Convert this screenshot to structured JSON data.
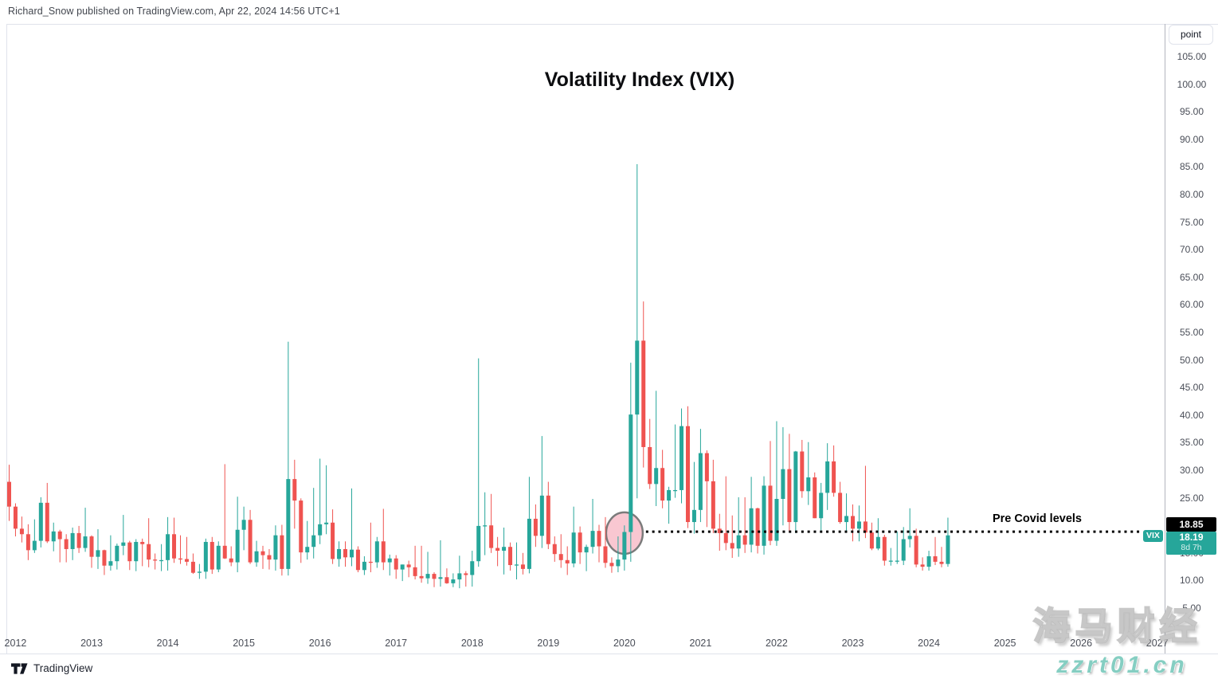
{
  "attribution": "Richard_Snow published on TradingView.com, Apr 22, 2024 14:56 UTC+1",
  "price_axis": {
    "unit_button": "point"
  },
  "price_labels": {
    "line": "18.85",
    "last": "18.19",
    "countdown": "8d 7h",
    "symbol_tag": "VIX"
  },
  "footer": {
    "logo_text": "TradingView"
  },
  "watermark": {
    "cjk": "海马财经",
    "latin": "zzrt01.cn"
  },
  "chart_data": {
    "type": "candlestick",
    "title": "Volatility Index (VIX)",
    "symbol": "VIX",
    "interval": "monthly",
    "grid": false,
    "colors": {
      "up": "#26a69a",
      "down": "#ef5350"
    },
    "y_axis": {
      "unit": "point",
      "min": 5,
      "max": 105,
      "tick_step": 5
    },
    "x_axis": {
      "tick_labels": [
        "2012",
        "2013",
        "2014",
        "2015",
        "2016",
        "2017",
        "2018",
        "2019",
        "2020",
        "2021",
        "2022",
        "2023",
        "2024",
        "2025",
        "2026",
        "2027"
      ]
    },
    "annotations": {
      "pre_covid_line": {
        "value": 18.85,
        "label": "Pre Covid levels",
        "style": "dotted",
        "color": "#000000",
        "price_label": "18.85"
      },
      "ellipse": {
        "month": "2020-01",
        "value": 18.6,
        "fill": "#f7b4c1",
        "border": "#7b7b7b"
      },
      "last_price": {
        "value": 18.19,
        "countdown": "8d 7h",
        "color": "#26a69a"
      }
    },
    "candle_fields": [
      "month",
      "open",
      "high",
      "low",
      "close"
    ],
    "candles": [
      [
        "2011-12",
        27.9,
        31.0,
        20.8,
        23.4
      ],
      [
        "2012-01",
        23.4,
        24.0,
        18.0,
        19.4
      ],
      [
        "2012-02",
        19.4,
        21.6,
        16.9,
        18.4
      ],
      [
        "2012-03",
        18.4,
        20.2,
        13.7,
        15.5
      ],
      [
        "2012-04",
        15.5,
        21.1,
        15.0,
        17.2
      ],
      [
        "2012-05",
        17.2,
        25.1,
        16.0,
        24.1
      ],
      [
        "2012-06",
        24.1,
        27.7,
        16.8,
        17.1
      ],
      [
        "2012-07",
        17.1,
        20.5,
        15.3,
        18.9
      ],
      [
        "2012-08",
        18.9,
        19.2,
        13.3,
        17.5
      ],
      [
        "2012-09",
        17.5,
        18.4,
        13.3,
        15.7
      ],
      [
        "2012-10",
        15.7,
        19.6,
        13.7,
        18.6
      ],
      [
        "2012-11",
        18.6,
        19.9,
        15.0,
        15.9
      ],
      [
        "2012-12",
        15.9,
        23.2,
        15.2,
        18.0
      ],
      [
        "2013-01",
        18.0,
        18.2,
        12.3,
        14.3
      ],
      [
        "2013-02",
        14.3,
        19.3,
        12.1,
        15.5
      ],
      [
        "2013-03",
        15.5,
        15.6,
        11.0,
        12.7
      ],
      [
        "2013-04",
        12.7,
        18.2,
        11.8,
        13.5
      ],
      [
        "2013-05",
        13.5,
        16.7,
        12.0,
        16.3
      ],
      [
        "2013-06",
        16.3,
        21.9,
        14.6,
        16.9
      ],
      [
        "2013-07",
        16.9,
        17.2,
        11.9,
        13.5
      ],
      [
        "2013-08",
        13.5,
        17.5,
        11.7,
        17.0
      ],
      [
        "2013-09",
        17.0,
        17.6,
        12.6,
        16.6
      ],
      [
        "2013-10",
        16.6,
        21.3,
        12.4,
        13.8
      ],
      [
        "2013-11",
        13.8,
        14.9,
        12.0,
        13.7
      ],
      [
        "2013-12",
        13.7,
        16.6,
        11.7,
        13.7
      ],
      [
        "2014-01",
        13.7,
        21.5,
        11.8,
        18.4
      ],
      [
        "2014-02",
        18.4,
        21.4,
        13.2,
        14.0
      ],
      [
        "2014-03",
        14.0,
        18.2,
        13.0,
        13.9
      ],
      [
        "2014-04",
        13.9,
        17.9,
        12.7,
        13.4
      ],
      [
        "2014-05",
        13.4,
        14.9,
        11.2,
        11.4
      ],
      [
        "2014-06",
        11.4,
        13.0,
        10.3,
        11.6
      ],
      [
        "2014-07",
        11.6,
        17.6,
        10.3,
        17.0
      ],
      [
        "2014-08",
        17.0,
        17.9,
        11.2,
        12.0
      ],
      [
        "2014-09",
        12.0,
        17.1,
        11.5,
        16.3
      ],
      [
        "2014-10",
        16.3,
        31.1,
        13.9,
        14.0
      ],
      [
        "2014-11",
        14.0,
        16.2,
        12.6,
        13.3
      ],
      [
        "2014-12",
        13.3,
        25.2,
        11.5,
        19.2
      ],
      [
        "2015-01",
        19.2,
        23.4,
        15.5,
        21.0
      ],
      [
        "2015-02",
        21.0,
        22.8,
        13.0,
        13.3
      ],
      [
        "2015-03",
        13.3,
        17.2,
        12.5,
        15.3
      ],
      [
        "2015-04",
        15.3,
        16.3,
        12.1,
        14.6
      ],
      [
        "2015-05",
        14.6,
        15.7,
        12.0,
        13.8
      ],
      [
        "2015-06",
        13.8,
        20.0,
        11.8,
        18.2
      ],
      [
        "2015-07",
        18.2,
        20.1,
        10.9,
        12.1
      ],
      [
        "2015-08",
        12.1,
        53.3,
        10.9,
        28.4
      ],
      [
        "2015-09",
        28.4,
        31.9,
        19.4,
        24.5
      ],
      [
        "2015-10",
        24.5,
        24.9,
        13.2,
        15.1
      ],
      [
        "2015-11",
        15.1,
        20.8,
        13.8,
        16.1
      ],
      [
        "2015-12",
        16.1,
        26.8,
        14.0,
        18.2
      ],
      [
        "2016-01",
        18.2,
        32.1,
        16.6,
        20.2
      ],
      [
        "2016-02",
        20.2,
        30.9,
        18.4,
        20.5
      ],
      [
        "2016-03",
        20.5,
        22.9,
        13.0,
        13.9
      ],
      [
        "2016-04",
        13.9,
        17.1,
        12.5,
        15.7
      ],
      [
        "2016-05",
        15.7,
        17.1,
        12.5,
        14.2
      ],
      [
        "2016-06",
        14.2,
        26.7,
        12.6,
        15.6
      ],
      [
        "2016-07",
        15.6,
        16.2,
        11.5,
        11.9
      ],
      [
        "2016-08",
        11.9,
        14.4,
        11.0,
        13.4
      ],
      [
        "2016-09",
        13.4,
        20.5,
        11.5,
        13.3
      ],
      [
        "2016-10",
        13.3,
        17.9,
        12.3,
        17.1
      ],
      [
        "2016-11",
        17.1,
        23.0,
        11.9,
        13.3
      ],
      [
        "2016-12",
        13.3,
        14.7,
        10.9,
        14.0
      ],
      [
        "2017-01",
        14.0,
        14.6,
        10.3,
        12.0
      ],
      [
        "2017-02",
        12.0,
        12.9,
        9.9,
        12.9
      ],
      [
        "2017-03",
        12.9,
        13.6,
        10.6,
        12.4
      ],
      [
        "2017-04",
        12.4,
        16.3,
        10.2,
        10.8
      ],
      [
        "2017-05",
        10.8,
        16.3,
        9.6,
        10.4
      ],
      [
        "2017-06",
        10.4,
        15.2,
        9.4,
        11.2
      ],
      [
        "2017-07",
        11.2,
        11.5,
        8.8,
        10.3
      ],
      [
        "2017-08",
        10.3,
        17.3,
        8.9,
        10.6
      ],
      [
        "2017-09",
        10.6,
        12.2,
        9.4,
        9.5
      ],
      [
        "2017-10",
        9.5,
        11.3,
        8.8,
        10.2
      ],
      [
        "2017-11",
        10.2,
        14.5,
        8.6,
        11.3
      ],
      [
        "2017-12",
        11.3,
        11.7,
        8.9,
        11.0
      ],
      [
        "2018-01",
        11.0,
        15.4,
        8.9,
        13.5
      ],
      [
        "2018-02",
        13.5,
        50.3,
        12.5,
        19.9
      ],
      [
        "2018-03",
        19.9,
        26.0,
        14.6,
        20.0
      ],
      [
        "2018-04",
        20.0,
        25.7,
        15.0,
        15.9
      ],
      [
        "2018-05",
        15.9,
        17.9,
        12.6,
        15.4
      ],
      [
        "2018-06",
        15.4,
        19.6,
        11.1,
        16.1
      ],
      [
        "2018-07",
        16.1,
        16.9,
        11.8,
        12.8
      ],
      [
        "2018-08",
        12.8,
        16.9,
        10.2,
        12.9
      ],
      [
        "2018-09",
        12.9,
        15.0,
        11.1,
        12.1
      ],
      [
        "2018-10",
        12.1,
        28.8,
        11.3,
        21.2
      ],
      [
        "2018-11",
        21.2,
        23.8,
        16.1,
        18.1
      ],
      [
        "2018-12",
        18.1,
        36.2,
        15.9,
        25.4
      ],
      [
        "2019-01",
        25.4,
        27.9,
        15.7,
        16.6
      ],
      [
        "2019-02",
        16.6,
        18.0,
        13.4,
        14.8
      ],
      [
        "2019-03",
        14.8,
        18.4,
        12.3,
        13.7
      ],
      [
        "2019-04",
        13.7,
        16.2,
        11.0,
        13.1
      ],
      [
        "2019-05",
        13.1,
        23.4,
        12.4,
        18.7
      ],
      [
        "2019-06",
        18.7,
        19.8,
        13.0,
        15.1
      ],
      [
        "2019-07",
        15.1,
        16.5,
        11.7,
        16.1
      ],
      [
        "2019-08",
        16.1,
        24.8,
        14.9,
        19.0
      ],
      [
        "2019-09",
        19.0,
        20.1,
        13.3,
        16.2
      ],
      [
        "2019-10",
        16.2,
        21.5,
        12.3,
        13.2
      ],
      [
        "2019-11",
        13.2,
        14.2,
        11.4,
        12.6
      ],
      [
        "2019-12",
        12.6,
        18.0,
        11.5,
        13.8
      ],
      [
        "2020-01",
        13.8,
        20.0,
        11.8,
        18.8
      ],
      [
        "2020-02",
        18.8,
        49.5,
        13.4,
        40.1
      ],
      [
        "2020-03",
        40.1,
        85.5,
        24.9,
        53.5
      ],
      [
        "2020-04",
        53.5,
        60.6,
        30.5,
        34.2
      ],
      [
        "2020-05",
        34.2,
        39.3,
        26.6,
        27.5
      ],
      [
        "2020-06",
        27.5,
        44.4,
        23.5,
        30.4
      ],
      [
        "2020-07",
        30.4,
        33.7,
        23.1,
        24.5
      ],
      [
        "2020-08",
        24.5,
        27.0,
        20.3,
        26.4
      ],
      [
        "2020-09",
        26.4,
        38.3,
        25.0,
        26.4
      ],
      [
        "2020-10",
        26.4,
        41.2,
        24.0,
        38.0
      ],
      [
        "2020-11",
        38.0,
        41.6,
        19.5,
        20.6
      ],
      [
        "2020-12",
        20.6,
        31.5,
        18.5,
        22.8
      ],
      [
        "2021-01",
        22.8,
        37.5,
        20.6,
        33.1
      ],
      [
        "2021-02",
        33.1,
        33.6,
        19.7,
        28.0
      ],
      [
        "2021-03",
        28.0,
        31.9,
        18.6,
        19.4
      ],
      [
        "2021-04",
        19.4,
        22.1,
        15.4,
        18.6
      ],
      [
        "2021-05",
        18.6,
        28.9,
        15.5,
        16.8
      ],
      [
        "2021-06",
        16.8,
        21.8,
        14.1,
        15.8
      ],
      [
        "2021-07",
        15.8,
        25.1,
        14.3,
        18.2
      ],
      [
        "2021-08",
        18.2,
        25.1,
        15.0,
        16.5
      ],
      [
        "2021-09",
        16.5,
        28.8,
        15.1,
        23.1
      ],
      [
        "2021-10",
        23.1,
        23.2,
        14.9,
        16.3
      ],
      [
        "2021-11",
        16.3,
        28.9,
        14.7,
        27.2
      ],
      [
        "2021-12",
        27.2,
        35.3,
        16.4,
        17.2
      ],
      [
        "2022-01",
        17.2,
        38.9,
        16.3,
        24.8
      ],
      [
        "2022-02",
        24.8,
        37.8,
        20.0,
        30.2
      ],
      [
        "2022-03",
        30.2,
        36.6,
        18.7,
        20.6
      ],
      [
        "2022-04",
        20.6,
        33.5,
        18.6,
        33.4
      ],
      [
        "2022-05",
        33.4,
        35.5,
        25.0,
        26.2
      ],
      [
        "2022-06",
        26.2,
        35.1,
        23.7,
        28.7
      ],
      [
        "2022-07",
        28.7,
        29.6,
        21.3,
        21.3
      ],
      [
        "2022-08",
        21.3,
        27.7,
        19.1,
        25.9
      ],
      [
        "2022-09",
        25.9,
        34.9,
        22.8,
        31.6
      ],
      [
        "2022-10",
        31.6,
        34.5,
        25.2,
        25.9
      ],
      [
        "2022-11",
        25.9,
        27.9,
        20.3,
        20.6
      ],
      [
        "2022-12",
        20.6,
        25.8,
        18.9,
        21.7
      ],
      [
        "2023-01",
        21.7,
        23.8,
        17.1,
        19.4
      ],
      [
        "2023-02",
        19.4,
        23.6,
        17.1,
        20.7
      ],
      [
        "2023-03",
        20.7,
        30.8,
        17.7,
        18.7
      ],
      [
        "2023-04",
        18.7,
        20.5,
        15.5,
        15.8
      ],
      [
        "2023-05",
        15.8,
        21.3,
        15.5,
        17.9
      ],
      [
        "2023-06",
        17.9,
        18.3,
        12.7,
        13.6
      ],
      [
        "2023-07",
        13.6,
        15.9,
        12.7,
        13.6
      ],
      [
        "2023-08",
        13.6,
        18.9,
        13.0,
        13.6
      ],
      [
        "2023-09",
        13.6,
        19.7,
        12.8,
        17.5
      ],
      [
        "2023-10",
        17.5,
        23.1,
        16.0,
        18.1
      ],
      [
        "2023-11",
        18.1,
        19.4,
        12.4,
        12.9
      ],
      [
        "2023-12",
        12.9,
        14.2,
        11.8,
        12.5
      ],
      [
        "2024-01",
        12.5,
        15.4,
        11.8,
        14.4
      ],
      [
        "2024-02",
        14.4,
        17.9,
        12.8,
        13.4
      ],
      [
        "2024-03",
        13.4,
        16.1,
        12.4,
        13.0
      ],
      [
        "2024-04",
        13.0,
        21.4,
        12.5,
        18.19
      ]
    ]
  }
}
